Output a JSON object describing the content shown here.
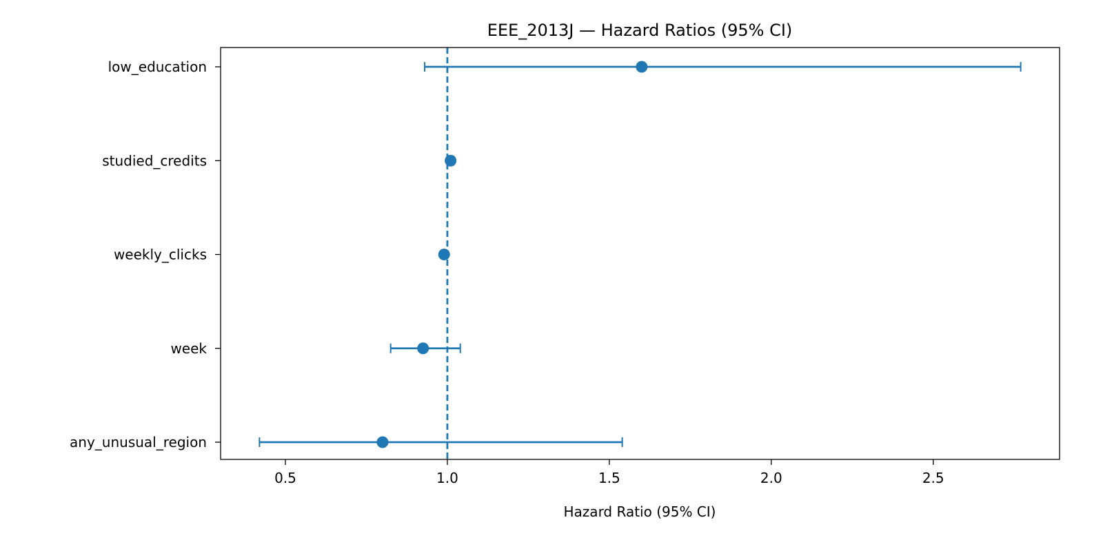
{
  "chart_data": {
    "type": "scatter",
    "title": "EEE_2013J — Hazard Ratios (95% CI)",
    "xlabel": "Hazard Ratio (95% CI)",
    "ylabel": "",
    "xlim": [
      0.3,
      2.89
    ],
    "x_ticks": [
      0.5,
      1.0,
      1.5,
      2.0,
      2.5
    ],
    "x_tick_labels": [
      "0.5",
      "1.0",
      "1.5",
      "2.0",
      "2.5"
    ],
    "reference_line": 1.0,
    "grid": false,
    "color": "#1f77b4",
    "points": [
      {
        "label": "low_education",
        "hr": 1.6,
        "lower": 0.93,
        "upper": 2.77
      },
      {
        "label": "studied_credits",
        "hr": 1.01,
        "lower": 1.0,
        "upper": 1.02
      },
      {
        "label": "weekly_clicks",
        "hr": 0.99,
        "lower": 0.985,
        "upper": 0.995
      },
      {
        "label": "week",
        "hr": 0.925,
        "lower": 0.825,
        "upper": 1.04
      },
      {
        "label": "any_unusual_region",
        "hr": 0.8,
        "lower": 0.42,
        "upper": 1.54
      }
    ]
  }
}
